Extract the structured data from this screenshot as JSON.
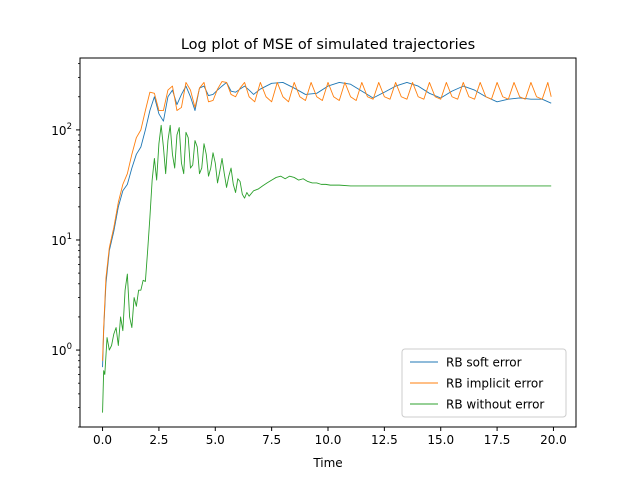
{
  "chart_data": {
    "type": "line",
    "title": "Log plot of MSE of simulated trajectories",
    "xlabel": "Time",
    "ylabel": "",
    "y_scale": "log",
    "xlim": [
      -1.0,
      21.0
    ],
    "ylim": [
      0.2,
      450
    ],
    "x_ticks": [
      0.0,
      2.5,
      5.0,
      7.5,
      10.0,
      12.5,
      15.0,
      17.5,
      20.0
    ],
    "x_tick_labels": [
      "0.0",
      "2.5",
      "5.0",
      "7.5",
      "10.0",
      "12.5",
      "15.0",
      "17.5",
      "20.0"
    ],
    "y_ticks": [
      1,
      10,
      100
    ],
    "y_tick_labels": [
      {
        "base": "10",
        "exp": "0"
      },
      {
        "base": "10",
        "exp": "1"
      },
      {
        "base": "10",
        "exp": "2"
      }
    ],
    "legend_position": "lower-right",
    "series": [
      {
        "name": "RB soft error",
        "color": "#1f77b4",
        "x": [
          0,
          0.05,
          0.15,
          0.3,
          0.5,
          0.7,
          0.9,
          1.1,
          1.3,
          1.5,
          1.7,
          1.9,
          2.1,
          2.3,
          2.5,
          2.7,
          2.9,
          3.1,
          3.3,
          3.5,
          3.7,
          3.9,
          4.1,
          4.3,
          4.5,
          4.7,
          4.9,
          5.1,
          5.3,
          5.5,
          5.7,
          5.9,
          6.1,
          6.3,
          6.5,
          6.7,
          7.0,
          7.5,
          8.0,
          8.5,
          9.0,
          9.5,
          10.0,
          10.5,
          11.0,
          11.5,
          12.0,
          12.5,
          13.0,
          13.5,
          14.0,
          14.5,
          15.0,
          15.5,
          16.0,
          16.5,
          17.0,
          17.5,
          18.0,
          18.5,
          19.0,
          19.5,
          19.9
        ],
        "values": [
          0.7,
          1.5,
          4,
          8,
          12,
          20,
          28,
          32,
          45,
          60,
          70,
          100,
          150,
          200,
          140,
          120,
          200,
          230,
          170,
          210,
          250,
          200,
          150,
          240,
          250,
          205,
          210,
          230,
          250,
          270,
          225,
          220,
          235,
          250,
          230,
          210,
          235,
          265,
          270,
          240,
          210,
          215,
          250,
          270,
          260,
          225,
          195,
          220,
          250,
          270,
          250,
          215,
          195,
          225,
          250,
          230,
          200,
          180,
          190,
          195,
          190,
          190,
          175
        ]
      },
      {
        "name": "RB implicit error",
        "color": "#ff7f0e",
        "x": [
          0,
          0.05,
          0.15,
          0.3,
          0.5,
          0.7,
          0.9,
          1.1,
          1.3,
          1.5,
          1.7,
          1.9,
          2.1,
          2.3,
          2.5,
          2.7,
          2.9,
          3.1,
          3.3,
          3.5,
          3.7,
          3.9,
          4.1,
          4.3,
          4.5,
          4.7,
          4.9,
          5.1,
          5.3,
          5.5,
          5.7,
          5.9,
          6.1,
          6.3,
          6.5,
          6.75,
          7.0,
          7.25,
          7.5,
          7.75,
          8.0,
          8.25,
          8.5,
          8.75,
          9.0,
          9.25,
          9.5,
          9.75,
          10.0,
          10.25,
          10.5,
          10.75,
          11.0,
          11.25,
          11.5,
          11.75,
          12.0,
          12.25,
          12.5,
          12.75,
          13.0,
          13.25,
          13.5,
          13.75,
          14.0,
          14.25,
          14.5,
          14.75,
          15.0,
          15.25,
          15.5,
          15.75,
          16.0,
          16.25,
          16.5,
          16.75,
          17.0,
          17.25,
          17.5,
          17.75,
          18.0,
          18.25,
          18.5,
          18.75,
          19.0,
          19.25,
          19.5,
          19.75,
          19.9
        ],
        "values": [
          0.8,
          1.6,
          4.5,
          8.5,
          13,
          22,
          32,
          40,
          60,
          85,
          100,
          150,
          220,
          215,
          150,
          150,
          230,
          250,
          150,
          160,
          270,
          230,
          160,
          240,
          270,
          180,
          185,
          235,
          275,
          270,
          210,
          200,
          240,
          270,
          200,
          180,
          270,
          200,
          180,
          270,
          200,
          180,
          270,
          200,
          185,
          270,
          200,
          185,
          270,
          200,
          185,
          270,
          200,
          185,
          270,
          200,
          190,
          270,
          200,
          190,
          270,
          200,
          190,
          270,
          200,
          190,
          270,
          200,
          190,
          270,
          200,
          190,
          270,
          200,
          190,
          270,
          200,
          190,
          270,
          200,
          190,
          270,
          200,
          190,
          270,
          200,
          190,
          270,
          200
        ]
      },
      {
        "name": "RB without error",
        "color": "#2ca02c",
        "x": [
          0,
          0.05,
          0.1,
          0.2,
          0.3,
          0.4,
          0.5,
          0.6,
          0.7,
          0.8,
          0.9,
          1.0,
          1.1,
          1.2,
          1.3,
          1.4,
          1.5,
          1.6,
          1.7,
          1.8,
          1.9,
          2.0,
          2.1,
          2.2,
          2.3,
          2.4,
          2.5,
          2.6,
          2.7,
          2.8,
          2.9,
          3.0,
          3.1,
          3.2,
          3.3,
          3.4,
          3.5,
          3.6,
          3.7,
          3.8,
          3.9,
          4.0,
          4.1,
          4.2,
          4.3,
          4.4,
          4.5,
          4.6,
          4.7,
          4.8,
          4.9,
          5.0,
          5.1,
          5.2,
          5.3,
          5.4,
          5.5,
          5.6,
          5.7,
          5.8,
          5.9,
          6.0,
          6.1,
          6.2,
          6.3,
          6.4,
          6.5,
          6.7,
          6.9,
          7.1,
          7.3,
          7.5,
          7.7,
          7.9,
          8.1,
          8.3,
          8.5,
          8.7,
          8.9,
          9.1,
          9.3,
          9.5,
          9.7,
          9.9,
          10.1,
          10.3,
          10.5,
          11.0,
          12.0,
          13.0,
          14.0,
          15.0,
          16.0,
          17.0,
          18.0,
          19.0,
          19.9
        ],
        "values": [
          0.27,
          0.65,
          0.6,
          1.3,
          1.0,
          1.1,
          1.4,
          1.6,
          1.1,
          2.0,
          1.5,
          3.5,
          4.9,
          2.0,
          1.6,
          3.0,
          2.5,
          3.5,
          3.5,
          4.3,
          4.2,
          8.0,
          16,
          35,
          55,
          35,
          75,
          110,
          70,
          40,
          80,
          110,
          60,
          45,
          90,
          105,
          50,
          40,
          95,
          85,
          45,
          48,
          80,
          70,
          40,
          45,
          75,
          60,
          38,
          45,
          62,
          50,
          33,
          42,
          55,
          40,
          30,
          38,
          45,
          32,
          27,
          36,
          34,
          26,
          24,
          27,
          25,
          28,
          29,
          31,
          33,
          35,
          37,
          38,
          36,
          38,
          37,
          35,
          36,
          34,
          33,
          33,
          32,
          32,
          31.5,
          31.5,
          31.5,
          31,
          31,
          31,
          31,
          31,
          31,
          31,
          31,
          31,
          31
        ]
      }
    ]
  }
}
